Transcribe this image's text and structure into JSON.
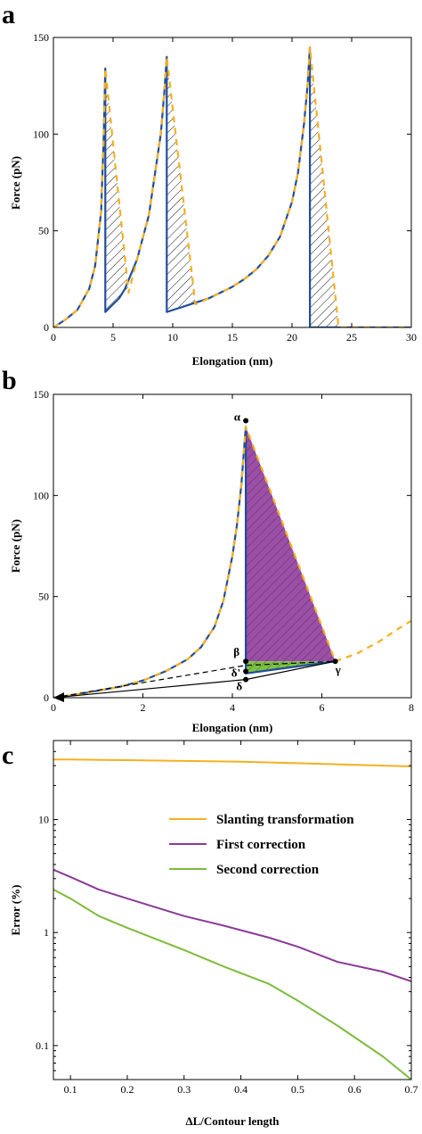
{
  "colors": {
    "blue": "#1f4e9c",
    "orange": "#f5b020",
    "purple": "#8b3a96",
    "purple_fill": "#9b4fa6",
    "green": "#7dbb3a",
    "green_fill": "#7cc242",
    "hatch": "#000000"
  },
  "chart_data": [
    {
      "panel": "a",
      "type": "line",
      "xlabel": "Elongation (nm)",
      "ylabel": "Force (pN)",
      "xlim": [
        0,
        30
      ],
      "ylim": [
        0,
        150
      ],
      "xticks": [
        "0",
        "5",
        "10",
        "15",
        "20",
        "25",
        "30"
      ],
      "yticks": [
        "0",
        "50",
        "100",
        "150"
      ],
      "grid": false,
      "series": [
        {
          "style": "solid-blue",
          "x": [
            0,
            1,
            2,
            3,
            3.5,
            4,
            4.2,
            4.35,
            4.35,
            5,
            5.5,
            6,
            7,
            8,
            9,
            9.3,
            9.5,
            9.5,
            10,
            11,
            12,
            13,
            14,
            15,
            16,
            17,
            18,
            19,
            20,
            20.5,
            21,
            21.3,
            21.5,
            21.5,
            30
          ],
          "y": [
            0,
            4,
            9,
            20,
            32,
            60,
            95,
            134,
            8,
            12,
            15,
            20,
            35,
            58,
            100,
            122,
            140,
            8,
            9,
            11,
            13,
            15,
            18,
            21,
            25,
            30,
            37,
            47,
            65,
            80,
            105,
            125,
            145,
            0,
            0
          ]
        },
        {
          "style": "dashed-orange",
          "x": [
            0,
            1,
            2,
            3,
            3.5,
            4,
            4.2,
            4.35,
            6.3,
            7,
            8,
            9,
            9.3,
            9.5,
            11.9,
            13,
            14,
            15,
            16,
            17,
            18,
            19,
            20,
            20.5,
            21,
            21.3,
            21.5,
            23.9,
            30
          ],
          "y": [
            0,
            4,
            9,
            20,
            32,
            60,
            95,
            134,
            18,
            35,
            58,
            100,
            122,
            140,
            12,
            15,
            18,
            21,
            25,
            30,
            37,
            47,
            65,
            80,
            105,
            125,
            145,
            0,
            0
          ]
        }
      ],
      "hatched_regions": [
        {
          "x": [
            4.35,
            4.35,
            5,
            6.3
          ],
          "y": [
            134,
            8,
            12,
            18
          ]
        },
        {
          "x": [
            9.5,
            9.5,
            10,
            11.9
          ],
          "y": [
            140,
            8,
            9,
            12
          ]
        },
        {
          "x": [
            21.5,
            21.5,
            23.9
          ],
          "y": [
            145,
            0,
            0
          ]
        }
      ]
    },
    {
      "panel": "b",
      "type": "line",
      "xlabel": "Elongation (nm)",
      "ylabel": "Force (pN)",
      "xlim": [
        0,
        8
      ],
      "ylim": [
        0,
        150
      ],
      "xticks": [
        "0",
        "2",
        "4",
        "6",
        "8"
      ],
      "yticks": [
        "0",
        "50",
        "100",
        "150"
      ],
      "grid": false,
      "series": [
        {
          "style": "solid-blue",
          "x": [
            0,
            0.5,
            1,
            1.5,
            2,
            2.5,
            3,
            3.3,
            3.6,
            3.8,
            4.0,
            4.1,
            4.2,
            4.3,
            4.3,
            4.8,
            5.3,
            5.8,
            6.3
          ],
          "y": [
            0,
            1.5,
            3.5,
            5.5,
            8.5,
            13,
            19,
            25,
            35,
            48,
            70,
            85,
            105,
            134,
            12,
            13.5,
            15,
            16.5,
            18
          ]
        },
        {
          "style": "dashed-orange",
          "x": [
            0,
            0.5,
            1,
            1.5,
            2,
            2.5,
            3,
            3.3,
            3.6,
            3.8,
            4.0,
            4.1,
            4.2,
            4.3,
            6.3,
            6.8,
            7.3,
            7.7,
            8
          ],
          "y": [
            0,
            1.5,
            3.5,
            5.5,
            8.5,
            13,
            19,
            25,
            35,
            48,
            70,
            85,
            105,
            134,
            18,
            22,
            28,
            34,
            38
          ]
        },
        {
          "style": "solid-black",
          "x": [
            0,
            4.3,
            6.3
          ],
          "y": [
            0,
            9,
            18
          ]
        },
        {
          "style": "dashed-black",
          "x": [
            0,
            4.3,
            6.3
          ],
          "y": [
            0,
            16,
            18
          ]
        }
      ],
      "regions": [
        {
          "fill": "purple",
          "x": [
            4.3,
            4.3,
            6.3
          ],
          "y": [
            134,
            18,
            18
          ]
        },
        {
          "fill": "green",
          "x": [
            4.3,
            4.3,
            6.3
          ],
          "y": [
            18,
            12,
            18
          ]
        }
      ],
      "annotations": [
        {
          "label": "α",
          "x": 4.3,
          "y": 137
        },
        {
          "label": "β",
          "x": 4.3,
          "y": 18
        },
        {
          "label": "δ'",
          "x": 4.3,
          "y": 13
        },
        {
          "label": "δ",
          "x": 4.3,
          "y": 9
        },
        {
          "label": "γ",
          "x": 6.3,
          "y": 18
        }
      ]
    },
    {
      "panel": "c",
      "type": "line",
      "xlabel": "ΔL/Contour length",
      "ylabel": "Error (%)",
      "xlim": [
        0.07,
        0.7
      ],
      "ylim": [
        0.05,
        50
      ],
      "yscale": "log",
      "xticks": [
        "0.1",
        "0.2",
        "0.3",
        "0.4",
        "0.5",
        "0.6",
        "0.7"
      ],
      "yticks": [
        "0.1",
        "1",
        "10"
      ],
      "grid": false,
      "legend_position": "top-right",
      "series": [
        {
          "name": "Slanting transformation",
          "color": "orange",
          "x": [
            0.07,
            0.1,
            0.2,
            0.3,
            0.4,
            0.5,
            0.6,
            0.7
          ],
          "y": [
            34,
            34,
            33.5,
            33,
            32.5,
            31.5,
            30.5,
            29.5
          ]
        },
        {
          "name": "First correction",
          "color": "purple",
          "x": [
            0.07,
            0.1,
            0.15,
            0.2,
            0.3,
            0.37,
            0.45,
            0.5,
            0.57,
            0.65,
            0.7
          ],
          "y": [
            3.6,
            3.1,
            2.4,
            2.0,
            1.4,
            1.15,
            0.9,
            0.75,
            0.55,
            0.45,
            0.37
          ]
        },
        {
          "name": "Second correction",
          "color": "green",
          "x": [
            0.07,
            0.1,
            0.15,
            0.2,
            0.3,
            0.37,
            0.45,
            0.5,
            0.57,
            0.65,
            0.7
          ],
          "y": [
            2.4,
            2.0,
            1.4,
            1.1,
            0.7,
            0.5,
            0.35,
            0.25,
            0.15,
            0.08,
            0.05
          ]
        }
      ]
    }
  ]
}
